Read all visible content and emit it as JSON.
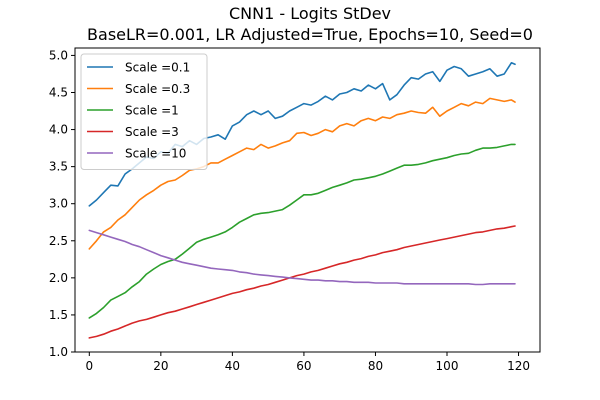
{
  "chart_data": {
    "type": "line",
    "title": "CNN1 - Logits StDev",
    "subtitle": "BaseLR=0.001, LR Adjusted=True, Epochs=10, Seed=0",
    "xlabel": "",
    "ylabel": "",
    "xlim": [
      -4,
      126
    ],
    "ylim": [
      1.0,
      5.1
    ],
    "xticks": [
      0,
      20,
      40,
      60,
      80,
      100,
      120
    ],
    "yticks": [
      1.0,
      1.5,
      2.0,
      2.5,
      3.0,
      3.5,
      4.0,
      4.5,
      5.0
    ],
    "grid": false,
    "legend_position": "top-left",
    "series": [
      {
        "name": "Scale =0.1",
        "color": "#1f77b4",
        "x": [
          0,
          2,
          4,
          6,
          8,
          10,
          12,
          14,
          16,
          18,
          20,
          22,
          24,
          26,
          28,
          30,
          32,
          34,
          36,
          38,
          40,
          42,
          44,
          46,
          48,
          50,
          52,
          54,
          56,
          58,
          60,
          62,
          64,
          66,
          68,
          70,
          72,
          74,
          76,
          78,
          80,
          82,
          84,
          86,
          88,
          90,
          92,
          94,
          96,
          98,
          100,
          102,
          104,
          106,
          108,
          110,
          112,
          114,
          116,
          118,
          119
        ],
        "values": [
          2.97,
          3.05,
          3.15,
          3.25,
          3.24,
          3.4,
          3.47,
          3.55,
          3.63,
          3.61,
          3.7,
          3.68,
          3.8,
          3.77,
          3.85,
          3.8,
          3.88,
          3.9,
          3.93,
          3.87,
          4.05,
          4.1,
          4.2,
          4.25,
          4.2,
          4.25,
          4.15,
          4.18,
          4.25,
          4.3,
          4.35,
          4.33,
          4.38,
          4.45,
          4.4,
          4.48,
          4.5,
          4.55,
          4.52,
          4.6,
          4.55,
          4.62,
          4.4,
          4.47,
          4.6,
          4.7,
          4.68,
          4.75,
          4.78,
          4.65,
          4.8,
          4.85,
          4.82,
          4.72,
          4.75,
          4.78,
          4.82,
          4.72,
          4.75,
          4.9,
          4.88
        ]
      },
      {
        "name": "Scale =0.3",
        "color": "#ff7f0e",
        "x": [
          0,
          2,
          4,
          6,
          8,
          10,
          12,
          14,
          16,
          18,
          20,
          22,
          24,
          26,
          28,
          30,
          32,
          34,
          36,
          38,
          40,
          42,
          44,
          46,
          48,
          50,
          52,
          54,
          56,
          58,
          60,
          62,
          64,
          66,
          68,
          70,
          72,
          74,
          76,
          78,
          80,
          82,
          84,
          86,
          88,
          90,
          92,
          94,
          96,
          98,
          100,
          102,
          104,
          106,
          108,
          110,
          112,
          114,
          116,
          118,
          119
        ],
        "values": [
          2.39,
          2.5,
          2.62,
          2.68,
          2.78,
          2.85,
          2.95,
          3.05,
          3.12,
          3.18,
          3.25,
          3.3,
          3.32,
          3.38,
          3.45,
          3.47,
          3.5,
          3.55,
          3.55,
          3.6,
          3.65,
          3.7,
          3.75,
          3.73,
          3.8,
          3.75,
          3.78,
          3.82,
          3.85,
          3.95,
          3.96,
          3.92,
          3.95,
          4.0,
          3.97,
          4.05,
          4.08,
          4.05,
          4.12,
          4.15,
          4.12,
          4.17,
          4.15,
          4.2,
          4.22,
          4.25,
          4.23,
          4.22,
          4.3,
          4.18,
          4.25,
          4.3,
          4.35,
          4.32,
          4.37,
          4.35,
          4.42,
          4.4,
          4.38,
          4.4,
          4.37
        ]
      },
      {
        "name": "Scale =1",
        "color": "#2ca02c",
        "x": [
          0,
          2,
          4,
          6,
          8,
          10,
          12,
          14,
          16,
          18,
          20,
          22,
          24,
          26,
          28,
          30,
          32,
          34,
          36,
          38,
          40,
          42,
          44,
          46,
          48,
          50,
          52,
          54,
          56,
          58,
          60,
          62,
          64,
          66,
          68,
          70,
          72,
          74,
          76,
          78,
          80,
          82,
          84,
          86,
          88,
          90,
          92,
          94,
          96,
          98,
          100,
          102,
          104,
          106,
          108,
          110,
          112,
          114,
          116,
          118,
          119
        ],
        "values": [
          1.46,
          1.52,
          1.6,
          1.7,
          1.75,
          1.8,
          1.88,
          1.95,
          2.05,
          2.12,
          2.18,
          2.22,
          2.25,
          2.32,
          2.4,
          2.48,
          2.52,
          2.55,
          2.58,
          2.62,
          2.68,
          2.75,
          2.8,
          2.85,
          2.87,
          2.88,
          2.9,
          2.92,
          2.98,
          3.05,
          3.12,
          3.12,
          3.14,
          3.18,
          3.22,
          3.25,
          3.28,
          3.32,
          3.33,
          3.35,
          3.37,
          3.4,
          3.44,
          3.48,
          3.52,
          3.52,
          3.53,
          3.55,
          3.58,
          3.6,
          3.62,
          3.65,
          3.67,
          3.68,
          3.72,
          3.75,
          3.75,
          3.76,
          3.78,
          3.8,
          3.8
        ]
      },
      {
        "name": "Scale =3",
        "color": "#d62728",
        "x": [
          0,
          2,
          4,
          6,
          8,
          10,
          12,
          14,
          16,
          18,
          20,
          22,
          24,
          26,
          28,
          30,
          32,
          34,
          36,
          38,
          40,
          42,
          44,
          46,
          48,
          50,
          52,
          54,
          56,
          58,
          60,
          62,
          64,
          66,
          68,
          70,
          72,
          74,
          76,
          78,
          80,
          82,
          84,
          86,
          88,
          90,
          92,
          94,
          96,
          98,
          100,
          102,
          104,
          106,
          108,
          110,
          112,
          114,
          116,
          118,
          119
        ],
        "values": [
          1.19,
          1.21,
          1.24,
          1.28,
          1.31,
          1.35,
          1.39,
          1.42,
          1.44,
          1.47,
          1.5,
          1.53,
          1.55,
          1.58,
          1.61,
          1.64,
          1.67,
          1.7,
          1.73,
          1.76,
          1.79,
          1.81,
          1.84,
          1.86,
          1.89,
          1.91,
          1.94,
          1.97,
          2.0,
          2.03,
          2.05,
          2.08,
          2.1,
          2.13,
          2.16,
          2.19,
          2.21,
          2.24,
          2.26,
          2.29,
          2.31,
          2.34,
          2.36,
          2.38,
          2.41,
          2.43,
          2.45,
          2.47,
          2.49,
          2.51,
          2.53,
          2.55,
          2.57,
          2.59,
          2.61,
          2.62,
          2.64,
          2.66,
          2.67,
          2.69,
          2.7
        ]
      },
      {
        "name": "Scale =10",
        "color": "#9467bd",
        "x": [
          0,
          2,
          4,
          6,
          8,
          10,
          12,
          14,
          16,
          18,
          20,
          22,
          24,
          26,
          28,
          30,
          32,
          34,
          36,
          38,
          40,
          42,
          44,
          46,
          48,
          50,
          52,
          54,
          56,
          58,
          60,
          62,
          64,
          66,
          68,
          70,
          72,
          74,
          76,
          78,
          80,
          82,
          84,
          86,
          88,
          90,
          92,
          94,
          96,
          98,
          100,
          102,
          104,
          106,
          108,
          110,
          112,
          114,
          116,
          118,
          119
        ],
        "values": [
          2.64,
          2.61,
          2.58,
          2.55,
          2.52,
          2.49,
          2.45,
          2.42,
          2.38,
          2.34,
          2.3,
          2.27,
          2.24,
          2.21,
          2.19,
          2.17,
          2.15,
          2.13,
          2.12,
          2.11,
          2.1,
          2.08,
          2.07,
          2.05,
          2.04,
          2.03,
          2.02,
          2.01,
          2.0,
          1.99,
          1.98,
          1.97,
          1.97,
          1.96,
          1.96,
          1.95,
          1.95,
          1.94,
          1.94,
          1.94,
          1.93,
          1.93,
          1.93,
          1.93,
          1.92,
          1.92,
          1.92,
          1.92,
          1.92,
          1.92,
          1.92,
          1.92,
          1.92,
          1.92,
          1.91,
          1.91,
          1.92,
          1.92,
          1.92,
          1.92,
          1.92
        ]
      }
    ]
  }
}
